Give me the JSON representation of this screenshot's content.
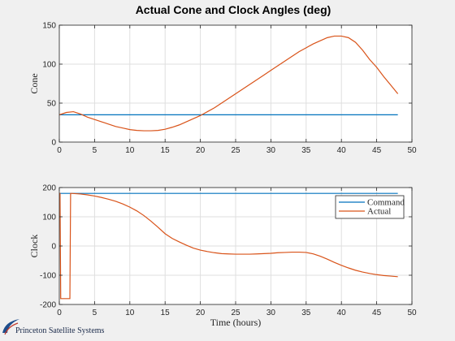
{
  "figure": {
    "title": "Actual Cone and Clock Angles (deg)",
    "logo_text": "Princeton Satellite Systems"
  },
  "colors": {
    "command": "#0072bd",
    "actual": "#d95319",
    "grid": "#dfdfdf",
    "axes_bg": "#ffffff",
    "figure_bg": "#f0f0f0"
  },
  "chart_data": [
    {
      "type": "line",
      "title": "Actual Cone and Clock Angles (deg)",
      "xlabel": "",
      "ylabel": "Cone",
      "xlim": [
        0,
        50
      ],
      "ylim": [
        0,
        150
      ],
      "xticks": [
        0,
        5,
        10,
        15,
        20,
        25,
        30,
        35,
        40,
        45,
        50
      ],
      "yticks": [
        0,
        50,
        100,
        150
      ],
      "grid": true,
      "series": [
        {
          "role": "command",
          "x": [
            0,
            48
          ],
          "y": [
            35,
            35
          ]
        },
        {
          "role": "actual",
          "x": [
            0,
            1,
            2,
            3,
            4,
            5,
            6,
            7,
            8,
            9,
            10,
            11,
            12,
            13,
            14,
            15,
            16,
            17,
            18,
            19,
            20,
            21,
            22,
            23,
            24,
            25,
            26,
            27,
            28,
            29,
            30,
            31,
            32,
            33,
            34,
            35,
            36,
            37,
            38,
            39,
            40,
            41,
            42,
            43,
            44,
            45,
            46,
            47,
            48
          ],
          "y": [
            35,
            38,
            39,
            36,
            32,
            29,
            26,
            23,
            20,
            18,
            16,
            15,
            14.5,
            14.5,
            15,
            16.5,
            19,
            22,
            26,
            30,
            34,
            39,
            44,
            50,
            56,
            62,
            68,
            74,
            80,
            86,
            92,
            98,
            104,
            110,
            116,
            121,
            126,
            130,
            134,
            136,
            136,
            134,
            128,
            118,
            106,
            96,
            84,
            73,
            62
          ]
        }
      ]
    },
    {
      "type": "line",
      "title": "",
      "xlabel": "Time (hours)",
      "ylabel": "Clock",
      "xlim": [
        0,
        50
      ],
      "ylim": [
        -200,
        200
      ],
      "xticks": [
        0,
        5,
        10,
        15,
        20,
        25,
        30,
        35,
        40,
        45,
        50
      ],
      "yticks": [
        -200,
        -100,
        0,
        100,
        200
      ],
      "grid": true,
      "legend": {
        "placement": "top-right",
        "entries": [
          "Command",
          "Actual"
        ]
      },
      "series": [
        {
          "name": "Command",
          "role": "command",
          "x": [
            0,
            48
          ],
          "y": [
            180,
            180
          ]
        },
        {
          "name": "Actual",
          "role": "actual",
          "x": [
            0,
            0.1,
            0.2,
            1.5,
            1.6,
            1.7,
            3,
            4,
            5,
            6,
            7,
            8,
            9,
            10,
            11,
            12,
            13,
            14,
            15,
            16,
            17,
            18,
            19,
            20,
            21,
            22,
            23,
            24,
            25,
            26,
            27,
            28,
            29,
            30,
            31,
            32,
            33,
            34,
            35,
            36,
            37,
            38,
            39,
            40,
            41,
            42,
            43,
            44,
            45,
            46,
            47,
            48
          ],
          "y": [
            180,
            180,
            -180,
            -180,
            180,
            180,
            178,
            175,
            171,
            166,
            160,
            153,
            144,
            133,
            120,
            104,
            85,
            64,
            42,
            26,
            14,
            3,
            -7,
            -14,
            -19,
            -23,
            -26,
            -27,
            -28,
            -28,
            -28,
            -27,
            -26,
            -25,
            -23,
            -22,
            -21,
            -21,
            -22,
            -27,
            -35,
            -45,
            -56,
            -66,
            -75,
            -83,
            -89,
            -94,
            -98,
            -101,
            -103,
            -105
          ]
        }
      ]
    }
  ]
}
